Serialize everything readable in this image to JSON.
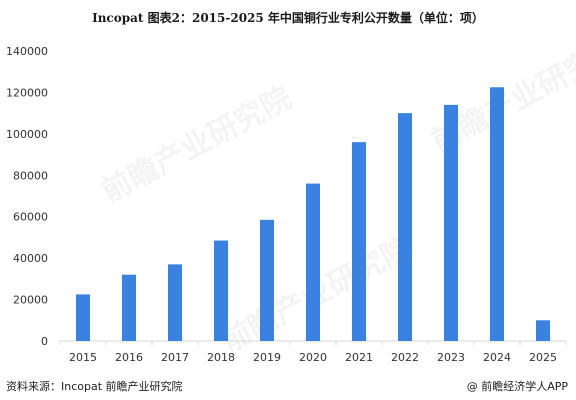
{
  "header": {
    "title": "Incopat  图表2：2015-2025 年中国铜行业专利公开数量（单位：项）"
  },
  "footer": {
    "source": "资料来源：Incopat 前瞻产业研究院",
    "credit": "@ 前瞻经济学人APP"
  },
  "watermark": {
    "text": "前瞻产业研究院"
  },
  "colors": {
    "bar": "#3b82e0",
    "axis": "#d9d9d9",
    "tick_text": "#333333"
  },
  "chart_data": {
    "type": "bar",
    "title": "Incopat  图表2：2015-2025 年中国铜行业专利公开数量（单位：项）",
    "xlabel": "",
    "ylabel": "",
    "categories": [
      "2015",
      "2016",
      "2017",
      "2018",
      "2019",
      "2020",
      "2021",
      "2022",
      "2023",
      "2024",
      "2025"
    ],
    "values": [
      22500,
      32000,
      37000,
      48500,
      58500,
      76000,
      96000,
      110000,
      114000,
      122500,
      10000
    ],
    "ylim": [
      0,
      140000
    ],
    "yticks": [
      0,
      20000,
      40000,
      60000,
      80000,
      100000,
      120000,
      140000
    ],
    "grid": false,
    "legend": "none"
  }
}
